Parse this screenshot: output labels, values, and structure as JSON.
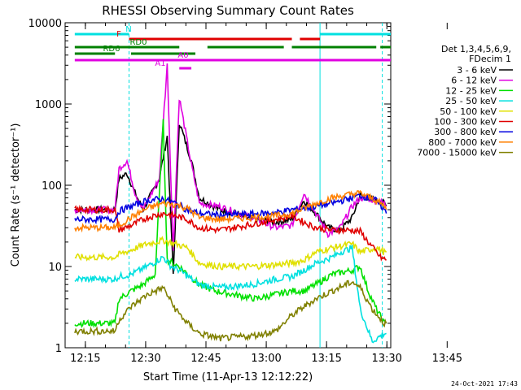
{
  "chart_data": {
    "type": "line",
    "title": "RHESSI Observing Summary Count Rates",
    "xlabel": "Start Time (11-Apr-13 12:12:22)",
    "ylabel": "Count Rate (s⁻¹ detector⁻¹)",
    "yscale": "log",
    "ylim": [
      1,
      10000
    ],
    "xlim_minutes": [
      -2.4,
      78.6
    ],
    "x_ticks": [
      "12:15",
      "12:30",
      "12:45",
      "13:00",
      "13:15",
      "13:30",
      "13:45"
    ],
    "y_ticks": [
      "1",
      "10",
      "100",
      "1000",
      "10000"
    ],
    "legend_header": [
      "Det 1,3,4,5,6,9,",
      "FDecim 1"
    ],
    "grid": false,
    "legend_position": "right",
    "series": [
      {
        "name": "3 - 6 keV",
        "color": "#000000",
        "points": [
          [
            0,
            50
          ],
          [
            10,
            50
          ],
          [
            11,
            120
          ],
          [
            13,
            140
          ],
          [
            15,
            80
          ],
          [
            17,
            50
          ],
          [
            21,
            120
          ],
          [
            23,
            400
          ],
          [
            24.5,
            8
          ],
          [
            26,
            600
          ],
          [
            29,
            200
          ],
          [
            31,
            70
          ],
          [
            36,
            50
          ],
          [
            40,
            45
          ],
          [
            42,
            40
          ],
          [
            50,
            35
          ],
          [
            54,
            38
          ],
          [
            57,
            65
          ],
          [
            60,
            45
          ],
          [
            63,
            30
          ],
          [
            66,
            28
          ],
          [
            69,
            40
          ],
          [
            71,
            75
          ],
          [
            75,
            65
          ],
          [
            77,
            60
          ],
          [
            77.5,
            55
          ]
        ]
      },
      {
        "name": "6 - 12 keV",
        "color": "#e000e0",
        "points": [
          [
            0,
            50
          ],
          [
            10,
            50
          ],
          [
            11,
            160
          ],
          [
            13,
            200
          ],
          [
            15,
            80
          ],
          [
            17,
            50
          ],
          [
            21,
            120
          ],
          [
            23,
            3000
          ],
          [
            24.5,
            15
          ],
          [
            26,
            1200
          ],
          [
            29,
            180
          ],
          [
            31,
            60
          ],
          [
            36,
            55
          ],
          [
            44,
            40
          ],
          [
            50,
            30
          ],
          [
            54,
            32
          ],
          [
            57,
            80
          ],
          [
            60,
            45
          ],
          [
            63,
            25
          ],
          [
            66,
            30
          ],
          [
            69,
            55
          ],
          [
            71,
            70
          ],
          [
            75,
            65
          ],
          [
            77,
            60
          ],
          [
            77.5,
            55
          ]
        ]
      },
      {
        "name": "12 - 25 keV",
        "color": "#00e000",
        "points": [
          [
            0,
            2
          ],
          [
            10,
            2
          ],
          [
            11,
            4
          ],
          [
            14,
            5
          ],
          [
            17,
            6
          ],
          [
            20,
            8
          ],
          [
            22,
            600
          ],
          [
            23,
            12
          ],
          [
            26,
            10
          ],
          [
            31,
            6
          ],
          [
            35,
            5
          ],
          [
            45,
            4
          ],
          [
            54,
            5
          ],
          [
            57,
            5
          ],
          [
            60,
            6
          ],
          [
            64,
            8
          ],
          [
            69,
            9
          ],
          [
            71,
            10
          ],
          [
            73,
            5
          ],
          [
            75,
            3
          ],
          [
            77,
            2
          ],
          [
            77.5,
            2
          ]
        ]
      },
      {
        "name": "25 - 50 keV",
        "color": "#00e0e0",
        "points": [
          [
            0,
            7
          ],
          [
            10,
            7
          ],
          [
            11,
            7.5
          ],
          [
            14,
            8
          ],
          [
            18,
            10
          ],
          [
            22,
            13
          ],
          [
            24,
            10
          ],
          [
            26,
            9
          ],
          [
            31,
            6
          ],
          [
            36,
            5.5
          ],
          [
            44,
            6
          ],
          [
            50,
            7
          ],
          [
            54,
            7.5
          ],
          [
            57,
            9
          ],
          [
            60,
            11
          ],
          [
            64,
            13
          ],
          [
            66,
            15
          ],
          [
            69,
            17
          ],
          [
            71,
            3
          ],
          [
            74,
            1.2
          ],
          [
            77,
            1.5
          ],
          [
            77.5,
            1.5
          ]
        ]
      },
      {
        "name": "50 - 100 keV",
        "color": "#e0e000",
        "points": [
          [
            0,
            13
          ],
          [
            10,
            13
          ],
          [
            11,
            14
          ],
          [
            14,
            16
          ],
          [
            18,
            19
          ],
          [
            22,
            21
          ],
          [
            25,
            19
          ],
          [
            28,
            17
          ],
          [
            31,
            11
          ],
          [
            36,
            10
          ],
          [
            44,
            10
          ],
          [
            50,
            10.5
          ],
          [
            54,
            11
          ],
          [
            57,
            12
          ],
          [
            60,
            15
          ],
          [
            64,
            17
          ],
          [
            69,
            19
          ],
          [
            71,
            15
          ],
          [
            75,
            17
          ],
          [
            77,
            15
          ],
          [
            77.5,
            15
          ]
        ]
      },
      {
        "name": "100 - 300 keV",
        "color": "#e00000",
        "points": [
          [
            0,
            50
          ],
          [
            10,
            50
          ],
          [
            11,
            28
          ],
          [
            14,
            32
          ],
          [
            18,
            40
          ],
          [
            22,
            45
          ],
          [
            25,
            42
          ],
          [
            28,
            38
          ],
          [
            31,
            30
          ],
          [
            36,
            28
          ],
          [
            44,
            33
          ],
          [
            50,
            38
          ],
          [
            54,
            42
          ],
          [
            57,
            35
          ],
          [
            60,
            30
          ],
          [
            64,
            28
          ],
          [
            69,
            28
          ],
          [
            71,
            27
          ],
          [
            73,
            20
          ],
          [
            76,
            13
          ],
          [
            77.5,
            12
          ]
        ]
      },
      {
        "name": "300 - 800 keV",
        "color": "#0000e0",
        "points": [
          [
            0,
            38
          ],
          [
            10,
            38
          ],
          [
            11,
            48
          ],
          [
            14,
            55
          ],
          [
            18,
            65
          ],
          [
            22,
            68
          ],
          [
            25,
            60
          ],
          [
            28,
            50
          ],
          [
            31,
            45
          ],
          [
            36,
            43
          ],
          [
            44,
            44
          ],
          [
            50,
            46
          ],
          [
            54,
            50
          ],
          [
            57,
            52
          ],
          [
            60,
            55
          ],
          [
            64,
            60
          ],
          [
            69,
            70
          ],
          [
            71,
            75
          ],
          [
            75,
            65
          ],
          [
            77,
            50
          ],
          [
            77.5,
            45
          ]
        ]
      },
      {
        "name": "800 - 7000 keV",
        "color": "#ff8000",
        "points": [
          [
            0,
            30
          ],
          [
            10,
            30
          ],
          [
            11,
            32
          ],
          [
            14,
            40
          ],
          [
            18,
            52
          ],
          [
            22,
            60
          ],
          [
            25,
            58
          ],
          [
            28,
            52
          ],
          [
            31,
            40
          ],
          [
            36,
            38
          ],
          [
            44,
            40
          ],
          [
            50,
            42
          ],
          [
            54,
            45
          ],
          [
            57,
            52
          ],
          [
            60,
            60
          ],
          [
            64,
            70
          ],
          [
            69,
            78
          ],
          [
            71,
            80
          ],
          [
            75,
            65
          ],
          [
            77,
            55
          ],
          [
            77.5,
            50
          ]
        ]
      },
      {
        "name": "7000 - 15000 keV",
        "color": "#808000",
        "points": [
          [
            0,
            1.6
          ],
          [
            10,
            1.6
          ],
          [
            11,
            2.2
          ],
          [
            14,
            3.2
          ],
          [
            18,
            4.5
          ],
          [
            22,
            5.5
          ],
          [
            25,
            3
          ],
          [
            28,
            2
          ],
          [
            31,
            1.5
          ],
          [
            36,
            1.3
          ],
          [
            44,
            1.4
          ],
          [
            50,
            1.6
          ],
          [
            54,
            2.5
          ],
          [
            57,
            3.2
          ],
          [
            60,
            4
          ],
          [
            64,
            5
          ],
          [
            69,
            6.5
          ],
          [
            71,
            5.5
          ],
          [
            74,
            3
          ],
          [
            77,
            2
          ],
          [
            77.5,
            2
          ]
        ]
      }
    ],
    "flag_bars": [
      {
        "label": "N",
        "color": "#00e0e0",
        "segments": [
          [
            0,
            13.5
          ],
          [
            61,
            78.6
          ]
        ]
      },
      {
        "label": "F",
        "color": "#e00000",
        "segments": [
          [
            13.5,
            54
          ],
          [
            56,
            61
          ]
        ]
      },
      {
        "label": "RD0",
        "color": "#008000",
        "segments": [
          [
            0,
            26
          ],
          [
            33,
            52
          ],
          [
            54,
            75
          ],
          [
            76,
            78.6
          ]
        ]
      },
      {
        "label": "RD6",
        "color": "#008000",
        "segments": [
          [
            0,
            10
          ],
          [
            14,
            30
          ]
        ]
      },
      {
        "label": "A0",
        "color": "#e000e0",
        "segments": [
          [
            0,
            78.6
          ]
        ]
      },
      {
        "label": "A1",
        "color": "#e000e0",
        "segments": [
          [
            26,
            29
          ]
        ]
      }
    ],
    "vertical_markers_minutes": [
      13.5,
      61,
      76.5
    ],
    "timestamp": "24-Oct-2021 17:43"
  }
}
